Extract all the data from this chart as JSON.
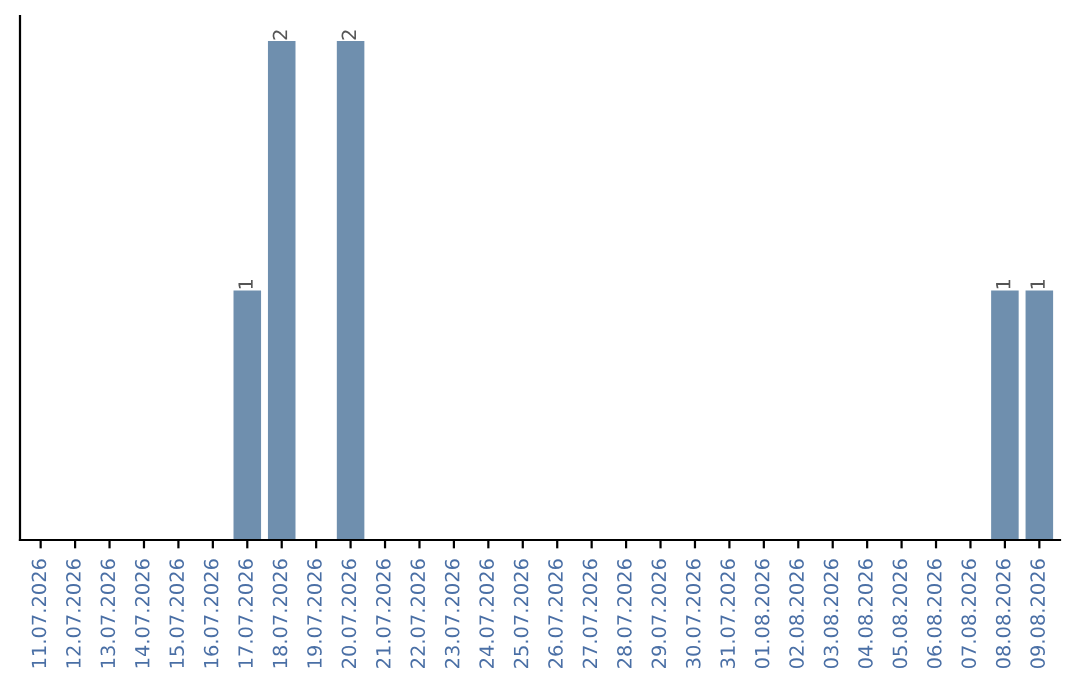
{
  "chart_data": {
    "type": "bar",
    "categories": [
      "11.07.2026",
      "12.07.2026",
      "13.07.2026",
      "14.07.2026",
      "15.07.2026",
      "16.07.2026",
      "17.07.2026",
      "18.07.2026",
      "19.07.2026",
      "20.07.2026",
      "21.07.2026",
      "22.07.2026",
      "23.07.2026",
      "24.07.2026",
      "25.07.2026",
      "26.07.2026",
      "27.07.2026",
      "28.07.2026",
      "29.07.2026",
      "30.07.2026",
      "31.07.2026",
      "01.08.2026",
      "02.08.2026",
      "03.08.2026",
      "04.08.2026",
      "05.08.2026",
      "06.08.2026",
      "07.08.2026",
      "08.08.2026",
      "09.08.2026"
    ],
    "values": [
      0,
      0,
      0,
      0,
      0,
      0,
      1,
      2,
      0,
      2,
      0,
      0,
      0,
      0,
      0,
      0,
      0,
      0,
      0,
      0,
      0,
      0,
      0,
      0,
      0,
      0,
      0,
      0,
      1,
      1
    ],
    "value_labels": [
      null,
      null,
      null,
      null,
      null,
      null,
      "1",
      "2",
      null,
      "2",
      null,
      null,
      null,
      null,
      null,
      null,
      null,
      null,
      null,
      null,
      null,
      null,
      null,
      null,
      null,
      null,
      null,
      null,
      "1",
      "1"
    ],
    "color": "#6f8fae",
    "tick_labels": "x",
    "grid": false
  }
}
